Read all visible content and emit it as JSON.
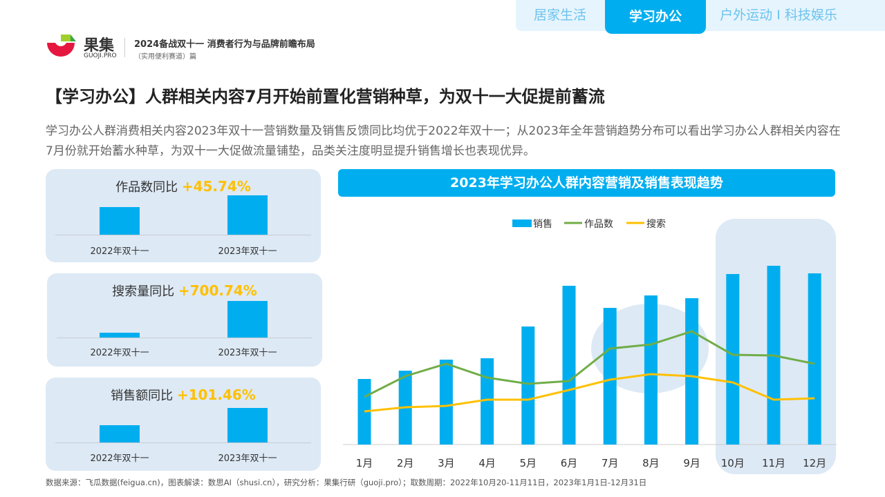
{
  "tabs": [
    {
      "label": "居家生活",
      "active": false
    },
    {
      "label": "学习办公",
      "active": true
    },
    {
      "label": "户外运动 I 科技娱乐",
      "active": false
    }
  ],
  "brand": {
    "name": "果集",
    "sub": "GUOJI.PRO",
    "report_title": "2024备战双十一 消费者行为与品牌前瞻布局",
    "report_sub": "（实用便利赛道）篇"
  },
  "headline": "【学习办公】人群相关内容7月开始前置化营销种草，为双十一大促提前蓄流",
  "description": "学习办公人群消费相关内容2023年双十一营销数量及销售反馈同比均优于2022年双十一；从2023年全年营销趋势分布可以看出学习办公人群相关内容在7月份就开始蓄水种草，为双十一大促做流量铺垫，品类关注度明显提升销售增长也表现优异。",
  "colors": {
    "accent": "#00aeef",
    "green": "#70ad47",
    "yellow": "#ffc000",
    "panel": "#dde9f5"
  },
  "cards": [
    {
      "label": "作品数同比",
      "value": "+45.74%",
      "categories": [
        "2022年双十一",
        "2023年双十一"
      ],
      "values": [
        1,
        1.4574
      ]
    },
    {
      "label": "搜索量同比",
      "value": "+700.74%",
      "categories": [
        "2022年双十一",
        "2023年双十一"
      ],
      "values": [
        1,
        8.0074
      ]
    },
    {
      "label": "销售额同比",
      "value": "+101.46%",
      "categories": [
        "2022年双十一",
        "2023年双十一"
      ],
      "values": [
        1,
        2.0146
      ]
    }
  ],
  "chart_data": {
    "type": "bar",
    "title": "2023年学习办公人群内容营销及销售表现趋势",
    "categories": [
      "1月",
      "2月",
      "3月",
      "4月",
      "5月",
      "6月",
      "7月",
      "8月",
      "9月",
      "10月",
      "11月",
      "12月"
    ],
    "legend_position": "top",
    "grid": false,
    "series": [
      {
        "name": "销售",
        "type": "bar",
        "color": "#00aeef",
        "values": [
          95,
          107,
          123,
          125,
          171,
          230,
          198,
          216,
          212,
          247,
          259,
          248
        ]
      },
      {
        "name": "作品数",
        "type": "line",
        "color": "#70ad47",
        "values": [
          69,
          99,
          117,
          97,
          88,
          92,
          139,
          145,
          164,
          130,
          129,
          117
        ]
      },
      {
        "name": "搜索",
        "type": "line",
        "color": "#ffc000",
        "values": [
          48,
          54,
          56,
          65,
          65,
          79,
          94,
          102,
          99,
          90,
          65,
          67
        ]
      }
    ],
    "highlight_months": [
      "10月",
      "11月",
      "12月"
    ]
  },
  "footer": "数据来源：飞瓜数据(feigua.cn)，图表解读：数思AI（shusi.cn），研究分析：果集行研（guoji.pro）；取数周期：2022年10月20-11月11日，2023年1月1日-12月31日"
}
